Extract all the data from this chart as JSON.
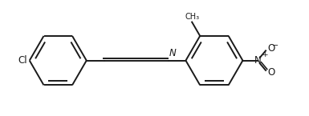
{
  "background_color": "#ffffff",
  "line_color": "#1a1a1a",
  "line_width": 1.4,
  "font_size": 8.5,
  "figsize": [
    3.85,
    1.45
  ],
  "dpi": 100,
  "r1x": -1.55,
  "r1y": -0.08,
  "r1r": 0.62,
  "rot1": 90,
  "r2x": 1.85,
  "r2y": -0.08,
  "r2r": 0.62,
  "rot2": 90,
  "xlim": [
    -2.8,
    3.9
  ],
  "ylim": [
    -1.05,
    1.0
  ]
}
